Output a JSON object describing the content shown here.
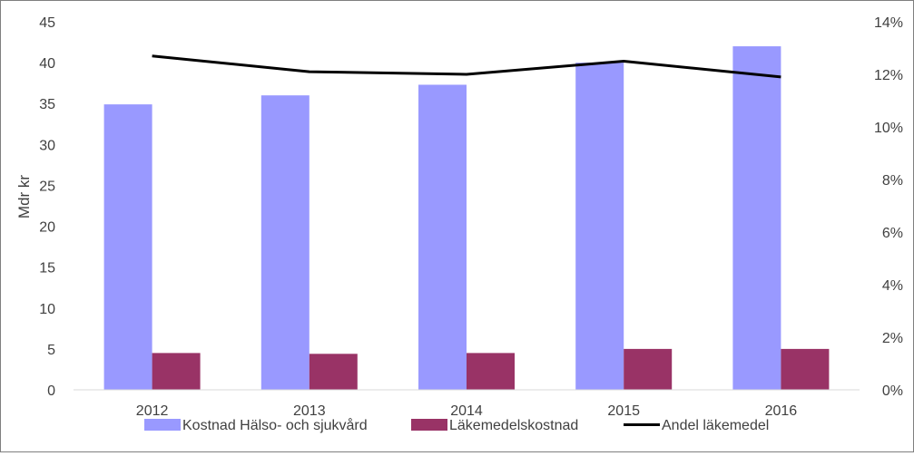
{
  "chart_data": {
    "type": "bar",
    "categories": [
      "2012",
      "2013",
      "2014",
      "2015",
      "2016"
    ],
    "series": [
      {
        "name": "Kostnad Hälso- och sjukvård",
        "kind": "bar",
        "axis": "left",
        "color": "#9999ff",
        "values": [
          34.9,
          36.0,
          37.3,
          40.0,
          42.0
        ]
      },
      {
        "name": "Läkemedelskostnad",
        "kind": "bar",
        "axis": "left",
        "color": "#993366",
        "values": [
          4.5,
          4.4,
          4.5,
          5.0,
          5.0
        ]
      },
      {
        "name": "Andel läkemedel",
        "kind": "line",
        "axis": "right",
        "color": "#000000",
        "values": [
          0.127,
          0.121,
          0.12,
          0.125,
          0.119
        ]
      }
    ],
    "ylabel": "Mdr kr",
    "ylim": [
      0,
      45
    ],
    "yticks": [
      "0",
      "5",
      "10",
      "15",
      "20",
      "25",
      "30",
      "35",
      "40",
      "45"
    ],
    "y2lim": [
      0,
      0.14
    ],
    "y2ticks": [
      "0%",
      "2%",
      "4%",
      "6%",
      "8%",
      "10%",
      "12%",
      "14%"
    ],
    "grid": false,
    "legend_position": "bottom"
  }
}
